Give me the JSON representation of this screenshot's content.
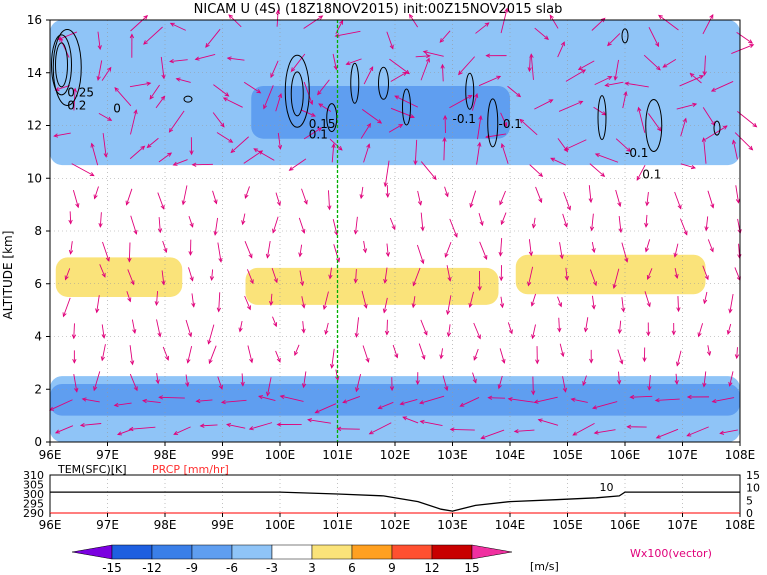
{
  "title": "NICAM U (4S) (18Z18NOV2015) init:00Z15NOV2015 slab",
  "chart_data": [
    {
      "type": "heatmap",
      "title": "NICAM U (4S) (18Z18NOV2015) init:00Z15NOV2015 slab",
      "xlabel": "",
      "ylabel": "ALTITUDE [km]",
      "x_tick_labels": [
        "96E",
        "97E",
        "98E",
        "99E",
        "100E",
        "101E",
        "102E",
        "103E",
        "104E",
        "105E",
        "106E",
        "107E",
        "108E"
      ],
      "x_ticks": [
        96,
        97,
        98,
        99,
        100,
        101,
        102,
        103,
        104,
        105,
        106,
        107,
        108
      ],
      "y_tick_labels": [
        "0",
        "2",
        "4",
        "6",
        "8",
        "10",
        "12",
        "14",
        "16"
      ],
      "y_ticks": [
        0,
        2,
        4,
        6,
        8,
        10,
        12,
        14,
        16
      ],
      "xlim": [
        96,
        108
      ],
      "ylim": [
        0,
        16
      ],
      "grid": true,
      "marker_line_lon": 101,
      "shaded_regions": [
        {
          "level": "-6 to -3",
          "color": "#8fc4f7",
          "lon_range": [
            96,
            108
          ],
          "alt_range": [
            0,
            2.5
          ]
        },
        {
          "level": "-9 to -6",
          "color": "#5f9ef0",
          "lon_range": [
            96,
            108
          ],
          "alt_range": [
            1.0,
            2.2
          ]
        },
        {
          "level": "3 to 6",
          "color": "#fae37a",
          "lon_range": [
            96.1,
            98.3
          ],
          "alt_range": [
            5.5,
            7.0
          ]
        },
        {
          "level": "3 to 6",
          "color": "#fae37a",
          "lon_range": [
            99.4,
            103.8
          ],
          "alt_range": [
            5.2,
            6.6
          ]
        },
        {
          "level": "3 to 6",
          "color": "#fae37a",
          "lon_range": [
            104.1,
            107.4
          ],
          "alt_range": [
            5.6,
            7.1
          ]
        },
        {
          "level": "-6 to -3",
          "color": "#8fc4f7",
          "lon_range": [
            96,
            108
          ],
          "alt_range": [
            10.5,
            16
          ]
        },
        {
          "level": "-9 to -6",
          "color": "#5f9ef0",
          "lon_range": [
            99.5,
            104
          ],
          "alt_range": [
            11.5,
            13.5
          ]
        }
      ],
      "contour_labels": [
        {
          "text": "0.25",
          "lon": 96.3,
          "alt": 13.1
        },
        {
          "text": "0.2",
          "lon": 96.3,
          "alt": 12.6
        },
        {
          "text": "0",
          "lon": 97.1,
          "alt": 12.5
        },
        {
          "text": "0.15",
          "lon": 100.5,
          "alt": 11.9
        },
        {
          "text": "0.1",
          "lon": 100.5,
          "alt": 11.5
        },
        {
          "text": "-0.1",
          "lon": 103.0,
          "alt": 12.1
        },
        {
          "text": "-0.1",
          "lon": 103.8,
          "alt": 11.9
        },
        {
          "text": "-0.1",
          "lon": 106.0,
          "alt": 10.8
        },
        {
          "text": "0.1",
          "lon": 106.3,
          "alt": 10.0
        }
      ]
    },
    {
      "type": "line",
      "title": "",
      "series": [
        {
          "name": "TEM(SFC)[K]",
          "color": "#000000",
          "x": [
            96,
            100,
            101,
            101.8,
            102.4,
            102.8,
            103.0,
            103.4,
            104.0,
            104.8,
            105.5,
            105.9,
            106.0,
            108
          ],
          "y": [
            301,
            301,
            300,
            299,
            296,
            292,
            291,
            294,
            296,
            297,
            298,
            299,
            301,
            301
          ]
        },
        {
          "name": "PRCP [mm/hr]",
          "color": "#ff3030",
          "x": [
            96,
            108
          ],
          "y": [
            0,
            0
          ]
        }
      ],
      "x_tick_labels": [
        "96E",
        "97E",
        "98E",
        "99E",
        "100E",
        "101E",
        "102E",
        "103E",
        "104E",
        "105E",
        "106E",
        "107E",
        "108E"
      ],
      "x_ticks": [
        96,
        97,
        98,
        99,
        100,
        101,
        102,
        103,
        104,
        105,
        106,
        107,
        108
      ],
      "y_left_tick_labels": [
        "290",
        "295",
        "300",
        "305",
        "310"
      ],
      "y_left_ticks": [
        290,
        295,
        300,
        305,
        310
      ],
      "y_right_tick_labels": [
        "0",
        "5",
        "10",
        "15"
      ],
      "y_right_ticks": [
        0,
        5,
        10,
        15
      ],
      "xlim": [
        96,
        108
      ],
      "ylim_left": [
        290,
        310
      ],
      "ylim_right": [
        0,
        15
      ],
      "annotation": {
        "text": "10",
        "lon": 105.8
      }
    }
  ],
  "colorbar": {
    "labels": [
      "-15",
      "-12",
      "-9",
      "-6",
      "-3",
      "3",
      "6",
      "9",
      "12",
      "15"
    ],
    "colors": [
      "#7b00e0",
      "#1e5fe0",
      "#3a7fe8",
      "#5f9ef0",
      "#8fc4f7",
      "#ffffff",
      "#fae37a",
      "#ffa020",
      "#ff5030",
      "#c80000",
      "#f030a0"
    ],
    "unit": "[m/s]"
  },
  "vector_label": "Wx100(vector)"
}
